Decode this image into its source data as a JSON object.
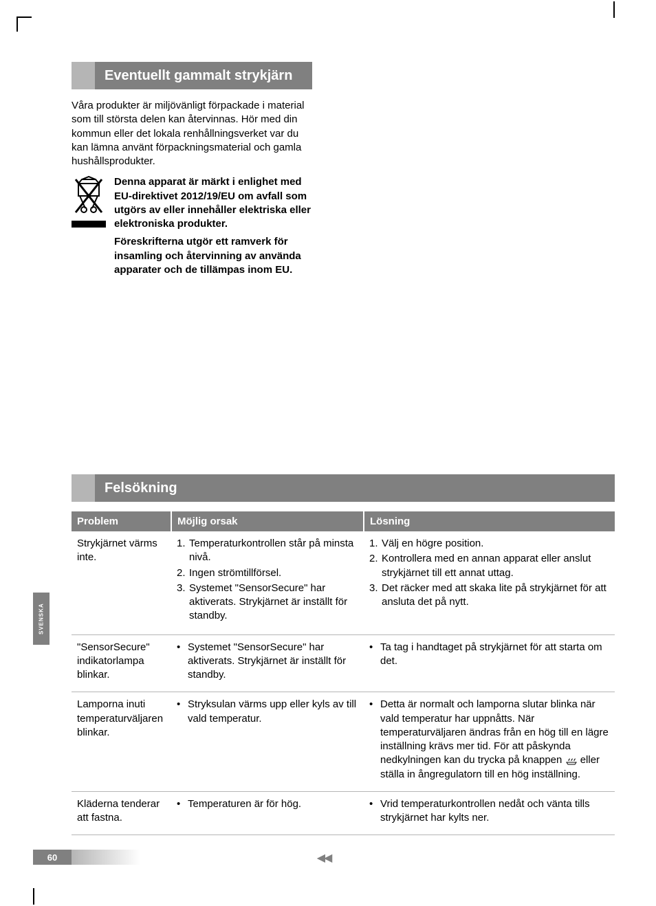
{
  "language_tab": "SVENSKA",
  "page_number": "60",
  "footer_arrows": "◀◀",
  "section1": {
    "title": "Eventuellt gammalt strykjärn",
    "intro": "Våra produkter är miljövänligt förpackade i material som till största delen kan återvinnas. Hör med din kommun eller det lokala renhållningsverket var du kan lämna använt förpackningsmaterial och gamla hushållsprodukter.",
    "weee_p1": "Denna apparat är märkt i enlighet med EU-direktivet 2012/19/EU om avfall som utgörs av eller innehåller elektriska eller elektroniska produkter.",
    "weee_p2": "Föreskrifterna utgör ett ramverk för insamling och återvinning av använda apparater och de tillämpas inom EU."
  },
  "section2": {
    "title": "Felsökning",
    "columns": [
      "Problem",
      "Möjlig orsak",
      "Lösning"
    ],
    "rows": [
      {
        "problem": "Strykjärnet värms inte.",
        "cause_type": "numbered",
        "causes": [
          "Temperaturkontrollen står på minsta nivå.",
          "Ingen strömtillförsel.",
          "Systemet \"SensorSecure\" har aktiverats. Strykjärnet är inställt för standby."
        ],
        "solution_type": "numbered",
        "solutions": [
          "Välj en högre position.",
          "Kontrollera med en annan apparat eller anslut strykjärnet till ett annat uttag.",
          "Det räcker med att skaka lite på strykjärnet för att ansluta det på nytt."
        ]
      },
      {
        "problem": "\"SensorSecure\" indikatorlampa blinkar.",
        "cause_type": "bullet",
        "causes": [
          "Systemet \"SensorSecure\" har aktiverats. Strykjärnet är inställt för standby."
        ],
        "solution_type": "bullet",
        "solutions": [
          "Ta tag i handtaget på strykjärnet för att starta om det."
        ]
      },
      {
        "problem": "Lamporna inuti temperaturväljaren blinkar.",
        "cause_type": "bullet",
        "causes": [
          "Stryksulan värms upp eller kyls av till vald temperatur."
        ],
        "solution_type": "bullet_icon",
        "solutions_pre": "Detta är normalt och lamporna slutar blinka när vald temperatur har uppnåtts. När temperaturväljaren ändras från en hög till en lägre inställning krävs mer tid. För att påskynda nedkylningen kan du trycka på knappen ",
        "solutions_post": " eller ställa in ångregulatorn till en hög inställning."
      },
      {
        "problem": "Kläderna tenderar att fastna.",
        "cause_type": "bullet",
        "causes": [
          "Temperaturen är för hög."
        ],
        "solution_type": "bullet",
        "solutions": [
          "Vrid temperaturkontrollen nedåt och vänta tills strykjärnet har kylts ner."
        ]
      }
    ]
  },
  "colors": {
    "header_bg": "#808080",
    "tab_bg": "#b5b5b5",
    "text": "#000000",
    "header_text": "#ffffff",
    "row_border": "#b5b5b5"
  }
}
